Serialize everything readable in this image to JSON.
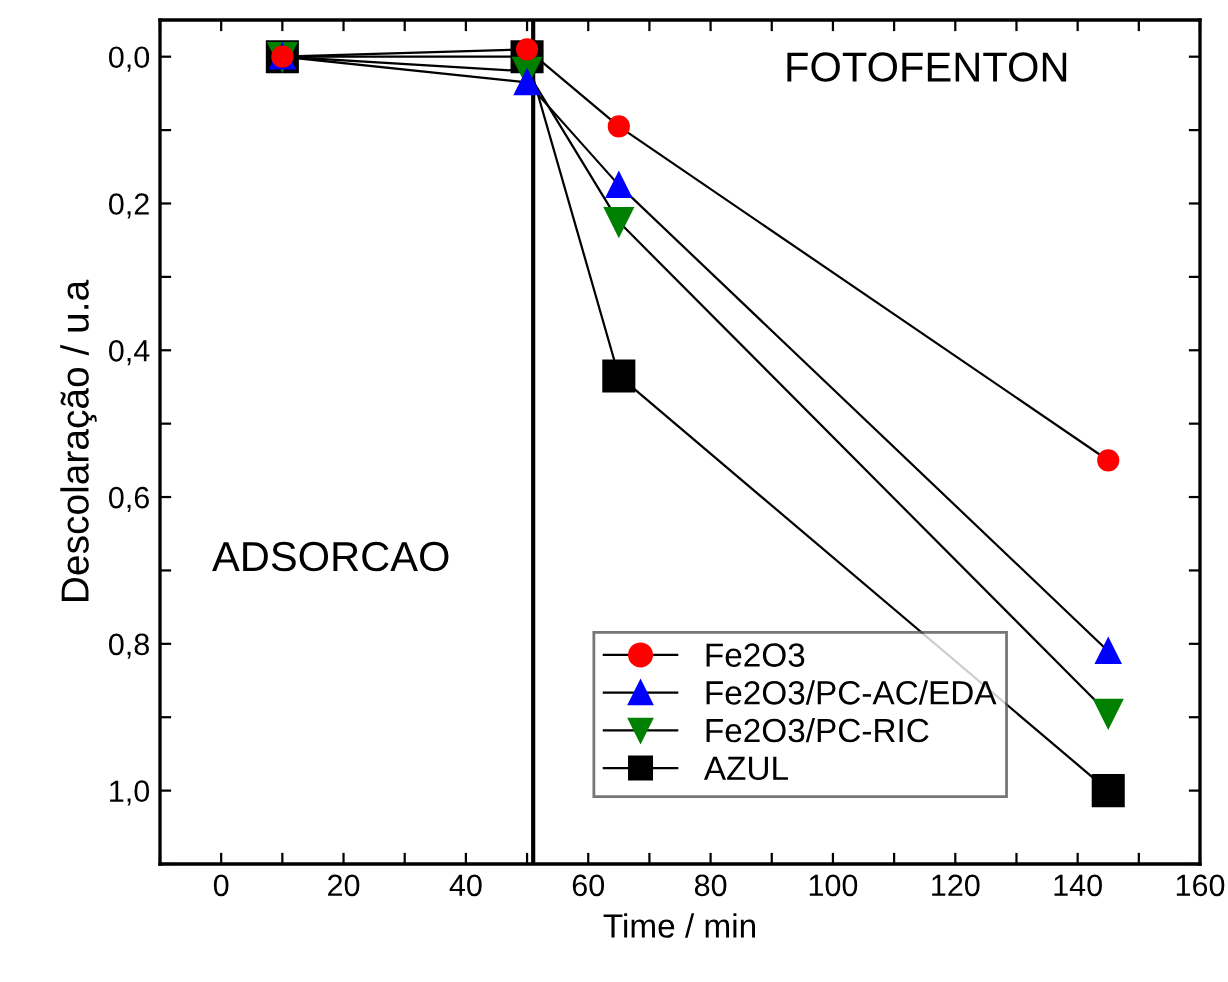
{
  "chart_data": {
    "type": "line",
    "xlabel": "Time / min",
    "ylabel": "Descolaração / u.a",
    "annotations": [
      "FOTOFENTON",
      "ADSORCAO"
    ],
    "x": [
      10,
      50,
      65,
      145
    ],
    "series": [
      {
        "name": "Fe2O3",
        "color": "#ff0000",
        "marker": "circle",
        "values": [
          0,
          -0.01,
          0.095,
          0.55
        ]
      },
      {
        "name": "Fe2O3/PC-AC/EDA",
        "color": "#0000ff",
        "marker": "triangle",
        "values": [
          0,
          0.035,
          0.175,
          0.81
        ]
      },
      {
        "name": "Fe2O3/PC-RIC",
        "color": "#008000",
        "marker": "triangle_down",
        "values": [
          0,
          0.02,
          0.225,
          0.895
        ]
      },
      {
        "name": "AZUL",
        "color": "#000000",
        "marker": "square",
        "values": [
          0,
          0,
          0.435,
          1.0
        ]
      }
    ],
    "xlim": [
      -10,
      160
    ],
    "ylim": [
      1.1,
      -0.05
    ],
    "xticks": [
      {
        "value": -10,
        "label": null
      },
      0,
      {
        "value": 10,
        "label": null
      },
      20,
      {
        "value": 30,
        "label": null
      },
      40,
      {
        "value": 50,
        "label": null
      },
      60,
      {
        "value": 70,
        "label": null
      },
      80,
      {
        "value": 90,
        "label": null
      },
      100,
      {
        "value": 110,
        "label": null
      },
      120,
      {
        "value": 130,
        "label": null
      },
      140,
      {
        "value": 150,
        "label": null
      },
      160
    ],
    "yticks": [
      {
        "value": 0,
        "label": "0,0"
      },
      {
        "value": 0.1,
        "label": null
      },
      {
        "value": 0.2,
        "label": "0,2"
      },
      {
        "value": 0.3,
        "label": null
      },
      {
        "value": 0.4,
        "label": "0,4"
      },
      {
        "value": 0.5,
        "label": null
      },
      {
        "value": 0.6,
        "label": "0,6"
      },
      {
        "value": 0.7,
        "label": null
      },
      {
        "value": 0.8,
        "label": "0,8"
      },
      {
        "value": 0.9,
        "label": null
      },
      {
        "value": 1.0,
        "label": "1,0"
      },
      {
        "value": 1.1,
        "label": null
      }
    ],
    "ref_lines": [
      {
        "axis": "x",
        "value": 51,
        "color": "#000000"
      }
    ],
    "grid": false,
    "legend": "bottom right",
    "line_style": "solid"
  }
}
